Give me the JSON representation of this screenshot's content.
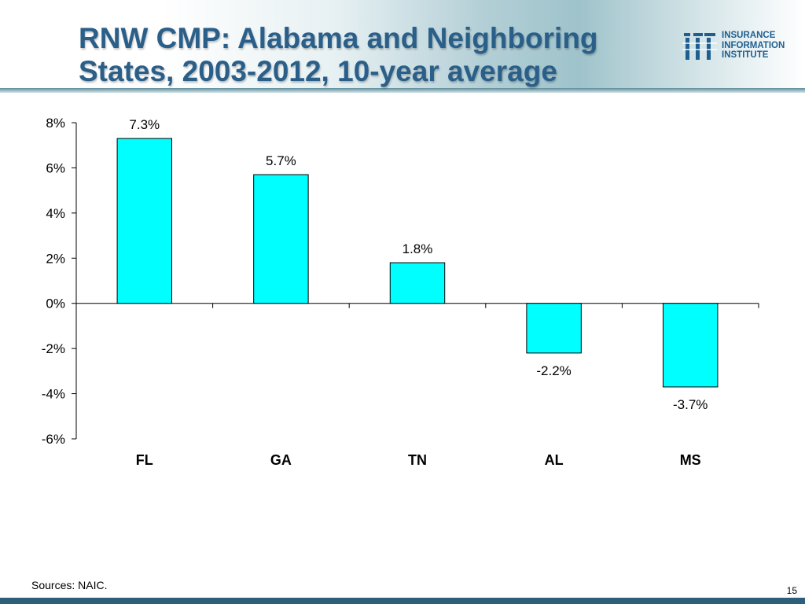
{
  "header": {
    "title_line1": "RNW CMP: Alabama and Neighboring",
    "title_line2": "States, 2003-2012, 10-year average"
  },
  "logo": {
    "lines": [
      "INSURANCE",
      "INFORMATION",
      "INSTITUTE"
    ],
    "brand_color": "#1f5f8f",
    "icon": "iii-logo-icon"
  },
  "chart_data": {
    "type": "bar",
    "categories": [
      "FL",
      "GA",
      "TN",
      "AL",
      "MS"
    ],
    "values": [
      7.3,
      5.7,
      1.8,
      -2.2,
      -3.7
    ],
    "data_labels": [
      "7.3%",
      "5.7%",
      "1.8%",
      "-2.2%",
      "-3.7%"
    ],
    "ylim": [
      -6,
      8
    ],
    "yticks": [
      8,
      6,
      4,
      2,
      0,
      -2,
      -4,
      -6
    ],
    "ytick_labels": [
      "8%",
      "6%",
      "4%",
      "2%",
      "0%",
      "-2%",
      "-4%",
      "-6%"
    ],
    "title": "",
    "xlabel": "",
    "ylabel": "",
    "grid": false,
    "bar_color": "#00ffff"
  },
  "footer": {
    "source": "Sources: NAIC.",
    "page_number": "15"
  }
}
